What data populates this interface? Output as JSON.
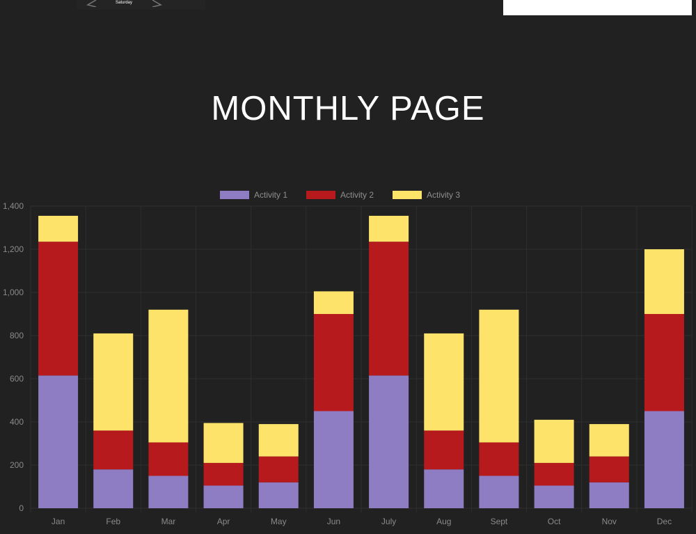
{
  "header": {
    "date_line1": "",
    "date_line2": "Saturday",
    "prev_icon": "chevron-left-icon",
    "next_icon": "chevron-right-icon"
  },
  "page_title": "MONTHLY PAGE",
  "colors": {
    "background": "#212121",
    "grid": "#2e2e2e",
    "activity1": "#8e7dc3",
    "activity2": "#b71a1c",
    "activity3": "#fde36a"
  },
  "chart_data": {
    "type": "bar",
    "stacked": true,
    "title": "",
    "xlabel": "",
    "ylabel": "",
    "ylim": [
      0,
      1400
    ],
    "y_ticks": [
      0,
      200,
      400,
      600,
      800,
      1000,
      1200,
      1400
    ],
    "y_tick_labels": [
      "0",
      "200",
      "400",
      "600",
      "800",
      "1,000",
      "1,200",
      "1,400"
    ],
    "grid": true,
    "legend_position": "top-center",
    "categories": [
      "Jan",
      "Feb",
      "Mar",
      "Apr",
      "May",
      "Jun",
      "July",
      "Aug",
      "Sept",
      "Oct",
      "Nov",
      "Dec"
    ],
    "series": [
      {
        "name": "Activity 1",
        "color": "#8e7dc3",
        "values": [
          615,
          180,
          150,
          105,
          120,
          450,
          615,
          180,
          150,
          105,
          120,
          450
        ]
      },
      {
        "name": "Activity 2",
        "color": "#b71a1c",
        "values": [
          620,
          180,
          155,
          105,
          120,
          450,
          620,
          180,
          155,
          105,
          120,
          450
        ]
      },
      {
        "name": "Activity 3",
        "color": "#fde36a",
        "values": [
          120,
          450,
          615,
          185,
          150,
          105,
          120,
          450,
          615,
          200,
          150,
          300
        ]
      }
    ]
  }
}
